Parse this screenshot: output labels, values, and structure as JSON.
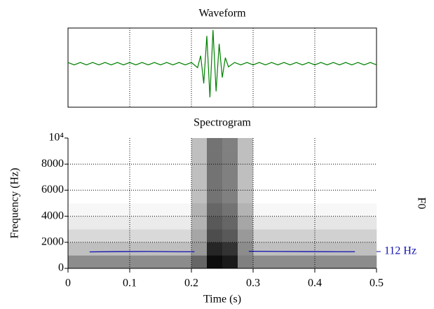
{
  "chart_data": [
    {
      "type": "line",
      "title": "Waveform",
      "ylim": [
        -1.1,
        0.9
      ],
      "color": "#008000",
      "sharex": true,
      "x": [
        0,
        0.01,
        0.02,
        0.03,
        0.04,
        0.05,
        0.06,
        0.07,
        0.08,
        0.09,
        0.1,
        0.11,
        0.12,
        0.13,
        0.14,
        0.15,
        0.16,
        0.17,
        0.18,
        0.19,
        0.2,
        0.21,
        0.215,
        0.22,
        0.225,
        0.23,
        0.235,
        0.24,
        0.245,
        0.25,
        0.255,
        0.26,
        0.27,
        0.28,
        0.29,
        0.3,
        0.31,
        0.32,
        0.33,
        0.34,
        0.35,
        0.36,
        0.37,
        0.38,
        0.39,
        0.4,
        0.41,
        0.42,
        0.43,
        0.44,
        0.45,
        0.46,
        0.47,
        0.48,
        0.49,
        0.5
      ],
      "values": [
        0.03,
        -0.03,
        0.03,
        -0.03,
        0.03,
        -0.03,
        0.03,
        -0.03,
        0.03,
        -0.03,
        0.03,
        -0.03,
        0.03,
        -0.03,
        0.03,
        -0.03,
        0.03,
        -0.03,
        0.03,
        -0.03,
        0.03,
        -0.1,
        0.2,
        -0.5,
        0.7,
        -0.85,
        0.85,
        -0.7,
        0.5,
        -0.35,
        0.15,
        -0.08,
        0.03,
        -0.03,
        0.03,
        -0.03,
        0.03,
        -0.03,
        0.03,
        -0.03,
        0.03,
        -0.03,
        0.03,
        -0.03,
        0.03,
        -0.03,
        0.03,
        -0.03,
        0.03,
        -0.03,
        0.03,
        -0.03,
        0.03,
        -0.03,
        0.03,
        -0.03
      ]
    },
    {
      "type": "spectrogram",
      "title": "Spectrogram",
      "x_label": "Time (s)",
      "y_label": "Frequency (Hz)",
      "y2_label": "F0",
      "xlim": [
        0,
        0.5
      ],
      "xticks": [
        0,
        0.1,
        0.2,
        0.3,
        0.4,
        0.5
      ],
      "ylim": [
        0,
        10000
      ],
      "yticks": [
        0,
        2000,
        4000,
        6000,
        8000,
        {
          "value": 10000,
          "label": "10⁴"
        }
      ],
      "y2lim": [
        0,
        870
      ],
      "y2ticks": [
        {
          "value": 112,
          "label": "112 Hz"
        }
      ],
      "grid": true,
      "colormap": [
        "#ffffff",
        "#000000"
      ],
      "bins": [
        0,
        0.025,
        0.05,
        0.075,
        0.1,
        0.125,
        0.15,
        0.175,
        0.2,
        0.225,
        0.25,
        0.275,
        0.3,
        0.325,
        0.35,
        0.375,
        0.4,
        0.425,
        0.45,
        0.475,
        0.5
      ],
      "y_bins": [
        0,
        1000,
        2000,
        3000,
        4000,
        5000,
        6000,
        7000,
        8000,
        9000,
        10000
      ],
      "z": [
        [
          0.45,
          0.45,
          0.45,
          0.45,
          0.45,
          0.45,
          0.45,
          0.45,
          0.6,
          0.95,
          0.9,
          0.5,
          0.45,
          0.45,
          0.45,
          0.45,
          0.45,
          0.45,
          0.45,
          0.45
        ],
        [
          0.25,
          0.25,
          0.25,
          0.25,
          0.25,
          0.25,
          0.25,
          0.25,
          0.4,
          0.85,
          0.8,
          0.45,
          0.25,
          0.25,
          0.25,
          0.25,
          0.25,
          0.25,
          0.25,
          0.25
        ],
        [
          0.15,
          0.15,
          0.15,
          0.15,
          0.15,
          0.15,
          0.15,
          0.15,
          0.35,
          0.7,
          0.65,
          0.4,
          0.18,
          0.18,
          0.18,
          0.18,
          0.18,
          0.18,
          0.18,
          0.18
        ],
        [
          0.08,
          0.08,
          0.08,
          0.08,
          0.08,
          0.08,
          0.08,
          0.08,
          0.3,
          0.65,
          0.6,
          0.35,
          0.1,
          0.1,
          0.1,
          0.1,
          0.1,
          0.1,
          0.1,
          0.1
        ],
        [
          0.03,
          0.03,
          0.03,
          0.03,
          0.03,
          0.03,
          0.03,
          0.03,
          0.3,
          0.6,
          0.55,
          0.3,
          0.03,
          0.03,
          0.03,
          0.03,
          0.03,
          0.03,
          0.03,
          0.03
        ],
        [
          0,
          0,
          0,
          0,
          0,
          0,
          0,
          0,
          0.25,
          0.55,
          0.5,
          0.25,
          0,
          0,
          0,
          0,
          0,
          0,
          0,
          0
        ],
        [
          0,
          0,
          0,
          0,
          0,
          0,
          0,
          0,
          0.25,
          0.55,
          0.5,
          0.25,
          0,
          0,
          0,
          0,
          0,
          0,
          0,
          0
        ],
        [
          0,
          0,
          0,
          0,
          0,
          0,
          0,
          0,
          0.25,
          0.55,
          0.5,
          0.25,
          0,
          0,
          0,
          0,
          0,
          0,
          0,
          0
        ],
        [
          0,
          0,
          0,
          0,
          0,
          0,
          0,
          0,
          0.25,
          0.55,
          0.5,
          0.25,
          0,
          0,
          0,
          0,
          0,
          0,
          0,
          0
        ],
        [
          0,
          0,
          0,
          0,
          0,
          0,
          0,
          0,
          0.25,
          0.55,
          0.5,
          0.25,
          0,
          0,
          0,
          0,
          0,
          0,
          0,
          0
        ]
      ],
      "series": [
        {
          "axis": "y2",
          "color": "#1010b0",
          "x": [
            0.035,
            0.08,
            0.13,
            0.18,
            0.205,
            0.21,
            0.293,
            0.34,
            0.39,
            0.44,
            0.465
          ],
          "values": [
            110,
            112,
            113,
            111,
            111,
            null,
            114,
            113,
            112,
            111,
            111
          ]
        }
      ]
    }
  ]
}
